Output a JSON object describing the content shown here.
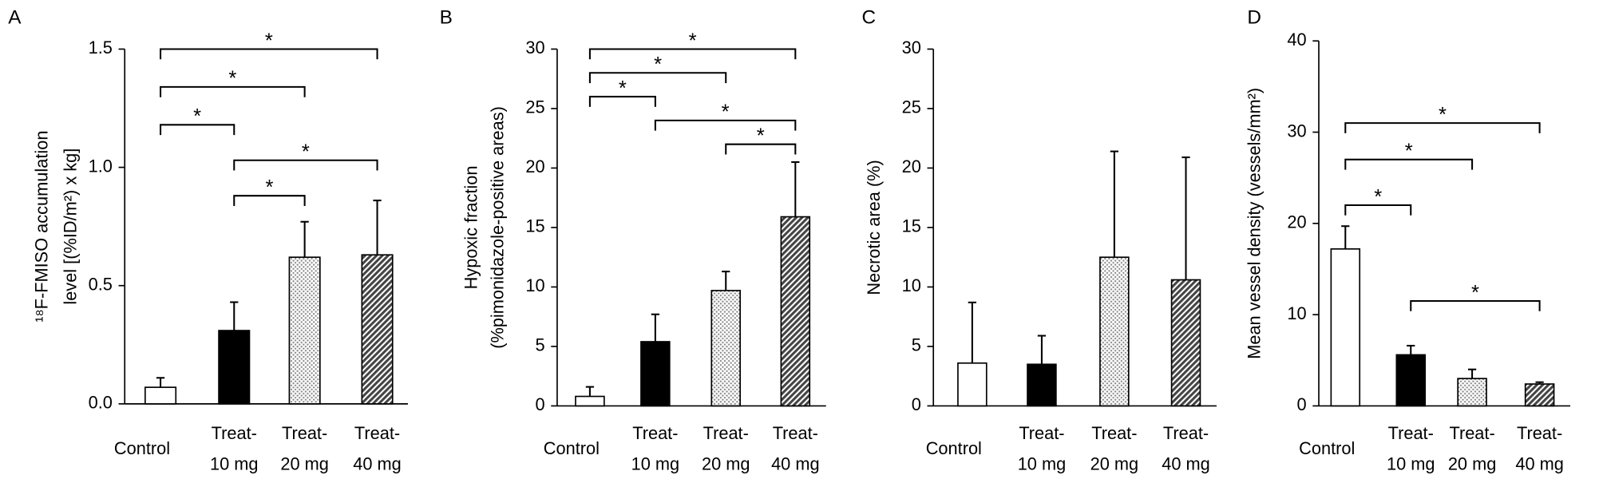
{
  "chart_data": [
    {
      "type": "bar",
      "panel": "A",
      "ylabel": [
        "¹⁸F-FMISO accumulation",
        "level [(%ID/m²) x kg]"
      ],
      "categories": [
        [
          "Control"
        ],
        [
          "Treat-",
          "10 mg"
        ],
        [
          "Treat-",
          "20 mg"
        ],
        [
          "Treat-",
          "40 mg"
        ]
      ],
      "values": [
        0.07,
        0.31,
        0.62,
        0.63
      ],
      "errors": [
        0.04,
        0.12,
        0.15,
        0.23
      ],
      "colors": [
        "#ffffff",
        "#000000",
        "#d4d4d4",
        "#707070"
      ],
      "ylim": [
        0,
        1.5
      ],
      "yticks": [
        {
          "value": 0,
          "label": "0.0"
        },
        0.5,
        {
          "value": 1,
          "label": "1.0"
        },
        1.5
      ],
      "annotations": [
        "*",
        "*",
        "*",
        "*",
        "*"
      ]
    },
    {
      "type": "bar",
      "panel": "B",
      "ylabel": [
        "Hypoxic fraction",
        "(%pimonidazole-positive areas)"
      ],
      "categories": [
        [
          "Control"
        ],
        [
          "Treat-",
          "10 mg"
        ],
        [
          "Treat-",
          "20 mg"
        ],
        [
          "Treat-",
          "40 mg"
        ]
      ],
      "values": [
        0.8,
        5.4,
        9.7,
        15.9
      ],
      "errors": [
        0.8,
        2.3,
        1.6,
        4.6
      ],
      "colors": [
        "#ffffff",
        "#000000",
        "#d4d4d4",
        "#707070"
      ],
      "ylim": [
        0,
        30
      ],
      "yticks": [
        0,
        5,
        10,
        15,
        20,
        25,
        30
      ],
      "annotations": [
        "*",
        "*",
        "*",
        "*",
        "*"
      ]
    },
    {
      "type": "bar",
      "panel": "C",
      "ylabel": [
        "Necrotic area (%)"
      ],
      "categories": [
        [
          "Control"
        ],
        [
          "Treat-",
          "10 mg"
        ],
        [
          "Treat-",
          "20 mg"
        ],
        [
          "Treat-",
          "40 mg"
        ]
      ],
      "values": [
        3.6,
        3.5,
        12.5,
        10.6
      ],
      "errors": [
        5.1,
        2.4,
        8.9,
        10.3
      ],
      "colors": [
        "#ffffff",
        "#000000",
        "#d4d4d4",
        "#707070"
      ],
      "ylim": [
        0,
        30
      ],
      "yticks": [
        0,
        5,
        10,
        15,
        20,
        25,
        30
      ]
    },
    {
      "type": "bar",
      "panel": "D",
      "ylabel": [
        "Mean vessel density (vessels/mm²)"
      ],
      "categories": [
        [
          "Control"
        ],
        [
          "Treat-",
          "10 mg"
        ],
        [
          "Treat-",
          "20 mg"
        ],
        [
          "Treat-",
          "40 mg"
        ]
      ],
      "values": [
        17.2,
        5.6,
        3.0,
        2.4
      ],
      "errors": [
        2.5,
        1.0,
        1.0,
        0.2
      ],
      "colors": [
        "#ffffff",
        "#000000",
        "#d4d4d4",
        "#707070"
      ],
      "ylim": [
        0,
        40
      ],
      "yticks": [
        0,
        10,
        20,
        30,
        40
      ],
      "annotations": [
        "*",
        "*",
        "*",
        "*"
      ]
    }
  ]
}
